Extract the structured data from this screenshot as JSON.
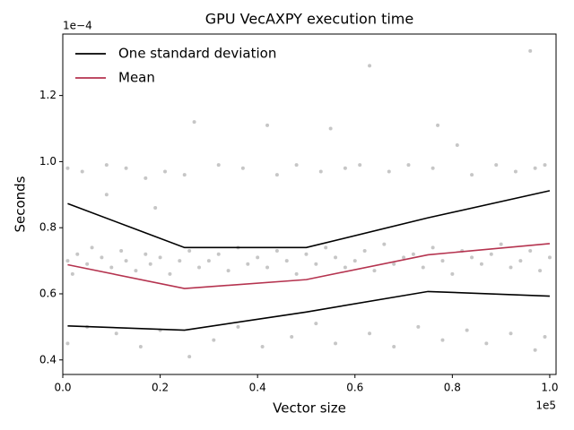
{
  "chart_data": {
    "type": "line",
    "title": "GPU VecAXPY execution time",
    "x_label": "Vector size",
    "y_label": "Seconds",
    "x_offset_label": "1e5",
    "y_offset_label": "1e−4",
    "xlim": [
      0,
      1.013
    ],
    "ylim": [
      0.356,
      1.386
    ],
    "xticks": [
      {
        "value": 0,
        "label": "0.0"
      },
      0.2,
      0.4,
      0.6,
      0.8,
      {
        "value": 1,
        "label": "1.0"
      }
    ],
    "yticks": [
      0.4,
      0.6,
      0.8,
      {
        "value": 1,
        "label": "1.0"
      },
      1.2
    ],
    "legend": "upper left",
    "series": [
      {
        "name": "One standard deviation",
        "color": "#000000",
        "x": [
          0.01,
          0.25,
          0.5,
          0.75,
          1.0
        ],
        "values": [
          0.873,
          0.74,
          0.74,
          0.83,
          0.912
        ],
        "lower": [
          0.503,
          0.49,
          0.545,
          0.607,
          0.593
        ]
      },
      {
        "name": "Mean",
        "color": "#b5334f",
        "x": [
          0.01,
          0.25,
          0.5,
          0.75,
          1.0
        ],
        "values": [
          0.688,
          0.616,
          0.643,
          0.718,
          0.752
        ]
      }
    ],
    "points": {
      "color": "#a0a0a0",
      "x": [
        0.01,
        0.02,
        0.03,
        0.05,
        0.06,
        0.08,
        0.1,
        0.12,
        0.13,
        0.15,
        0.17,
        0.18,
        0.2,
        0.22,
        0.24,
        0.26,
        0.28,
        0.3,
        0.32,
        0.34,
        0.36,
        0.38,
        0.4,
        0.42,
        0.44,
        0.46,
        0.48,
        0.5,
        0.52,
        0.54,
        0.56,
        0.58,
        0.6,
        0.62,
        0.64,
        0.66,
        0.68,
        0.7,
        0.72,
        0.74,
        0.76,
        0.78,
        0.8,
        0.82,
        0.84,
        0.86,
        0.88,
        0.9,
        0.92,
        0.94,
        0.96,
        0.98,
        1.0,
        0.01,
        0.04,
        0.09,
        0.13,
        0.17,
        0.21,
        0.25,
        0.32,
        0.37,
        0.44,
        0.48,
        0.53,
        0.58,
        0.61,
        0.67,
        0.71,
        0.76,
        0.84,
        0.89,
        0.93,
        0.97,
        0.99,
        0.01,
        0.05,
        0.11,
        0.16,
        0.2,
        0.26,
        0.31,
        0.36,
        0.41,
        0.47,
        0.52,
        0.56,
        0.63,
        0.68,
        0.73,
        0.78,
        0.83,
        0.87,
        0.92,
        0.97,
        0.99,
        0.09,
        0.19,
        0.27,
        0.42,
        0.55,
        0.63,
        0.77,
        0.81,
        0.96
      ],
      "y": [
        0.7,
        0.66,
        0.72,
        0.69,
        0.74,
        0.71,
        0.68,
        0.73,
        0.7,
        0.67,
        0.72,
        0.69,
        0.71,
        0.66,
        0.7,
        0.73,
        0.68,
        0.7,
        0.72,
        0.67,
        0.74,
        0.69,
        0.71,
        0.68,
        0.73,
        0.7,
        0.66,
        0.72,
        0.69,
        0.74,
        0.71,
        0.68,
        0.7,
        0.73,
        0.67,
        0.75,
        0.69,
        0.71,
        0.72,
        0.68,
        0.74,
        0.7,
        0.66,
        0.73,
        0.71,
        0.69,
        0.72,
        0.75,
        0.68,
        0.7,
        0.73,
        0.67,
        0.71,
        0.98,
        0.97,
        0.99,
        0.98,
        0.95,
        0.97,
        0.96,
        0.99,
        0.98,
        0.96,
        0.99,
        0.97,
        0.98,
        0.99,
        0.97,
        0.99,
        0.98,
        0.96,
        0.99,
        0.97,
        0.98,
        0.99,
        0.45,
        0.5,
        0.48,
        0.44,
        0.49,
        0.41,
        0.46,
        0.5,
        0.44,
        0.47,
        0.51,
        0.45,
        0.48,
        0.44,
        0.5,
        0.46,
        0.49,
        0.45,
        0.48,
        0.43,
        0.47,
        0.9,
        0.86,
        1.12,
        1.11,
        1.1,
        1.29,
        1.11,
        1.05,
        1.335
      ]
    }
  }
}
